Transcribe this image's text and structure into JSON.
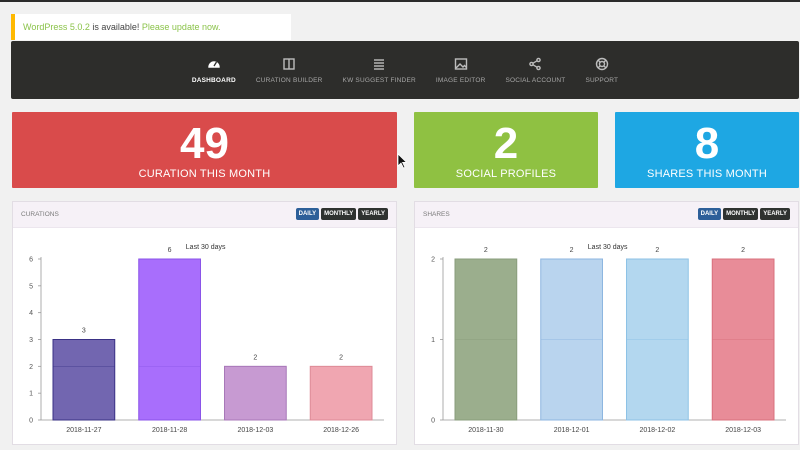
{
  "notice": {
    "version_text": "WordPress 5.0.2",
    "middle_text": " is available! ",
    "link_text": "Please update now."
  },
  "nav": {
    "items": [
      {
        "label": "DASHBOARD",
        "icon": "dashboard-icon",
        "active": true
      },
      {
        "label": "CURATION BUILDER",
        "icon": "columns-icon",
        "active": false
      },
      {
        "label": "KW SUGGEST FINDER",
        "icon": "list-icon",
        "active": false
      },
      {
        "label": "IMAGE EDITOR",
        "icon": "image-icon",
        "active": false
      },
      {
        "label": "SOCIAL ACCOUNT",
        "icon": "share-icon",
        "active": false
      },
      {
        "label": "SUPPORT",
        "icon": "lifebuoy-icon",
        "active": false
      }
    ]
  },
  "stats": {
    "curation": {
      "value": "49",
      "label": "CURATION THIS MONTH"
    },
    "profiles": {
      "value": "2",
      "label": "SOCIAL PROFILES"
    },
    "shares": {
      "value": "8",
      "label": "SHARES THIS MONTH"
    }
  },
  "panels": {
    "curations": {
      "title": "CURATIONS",
      "buttons": [
        "DAILY",
        "MONTHLY",
        "YEARLY"
      ],
      "active_button": "DAILY"
    },
    "shares": {
      "title": "SHARES",
      "buttons": [
        "DAILY",
        "MONTHLY",
        "YEARLY"
      ],
      "active_button": "DAILY"
    }
  },
  "colors": {
    "curation_stat": "#d94b4b",
    "profiles_stat": "#8fc142",
    "shares_stat": "#1ea7e3",
    "nav_bg": "#2d2d2b",
    "active_button": "#2d5f99"
  },
  "chart_data": [
    {
      "type": "bar",
      "title": "Last 30 days",
      "categories": [
        "2018-11-27",
        "2018-11-28",
        "2018-12-03",
        "2018-12-26"
      ],
      "values": [
        3,
        6,
        2,
        2
      ],
      "colors": [
        "#7266b0",
        "#a86efc",
        "#c79ad2",
        "#f0a6b1"
      ],
      "border_colors": [
        "#3a3185",
        "#8a53e8",
        "#a878b8",
        "#de8b97"
      ],
      "ylim": [
        0,
        6
      ],
      "yticks": [
        0,
        1,
        2,
        3,
        4,
        5,
        6
      ],
      "xlabel": "",
      "ylabel": "",
      "grid": false
    },
    {
      "type": "bar",
      "title": "Last 30 days",
      "categories": [
        "2018-11-30",
        "2018-12-01",
        "2018-12-02",
        "2018-12-03"
      ],
      "values": [
        2,
        2,
        2,
        2
      ],
      "colors": [
        "#9bae8d",
        "#b9d4ee",
        "#b3d7ef",
        "#e88c98"
      ],
      "border_colors": [
        "#8a9d7c",
        "#8db6e0",
        "#8dc2e6",
        "#d8707d"
      ],
      "ylim": [
        0,
        2
      ],
      "yticks": [
        0,
        1,
        2
      ],
      "xlabel": "",
      "ylabel": "",
      "grid": false
    }
  ]
}
